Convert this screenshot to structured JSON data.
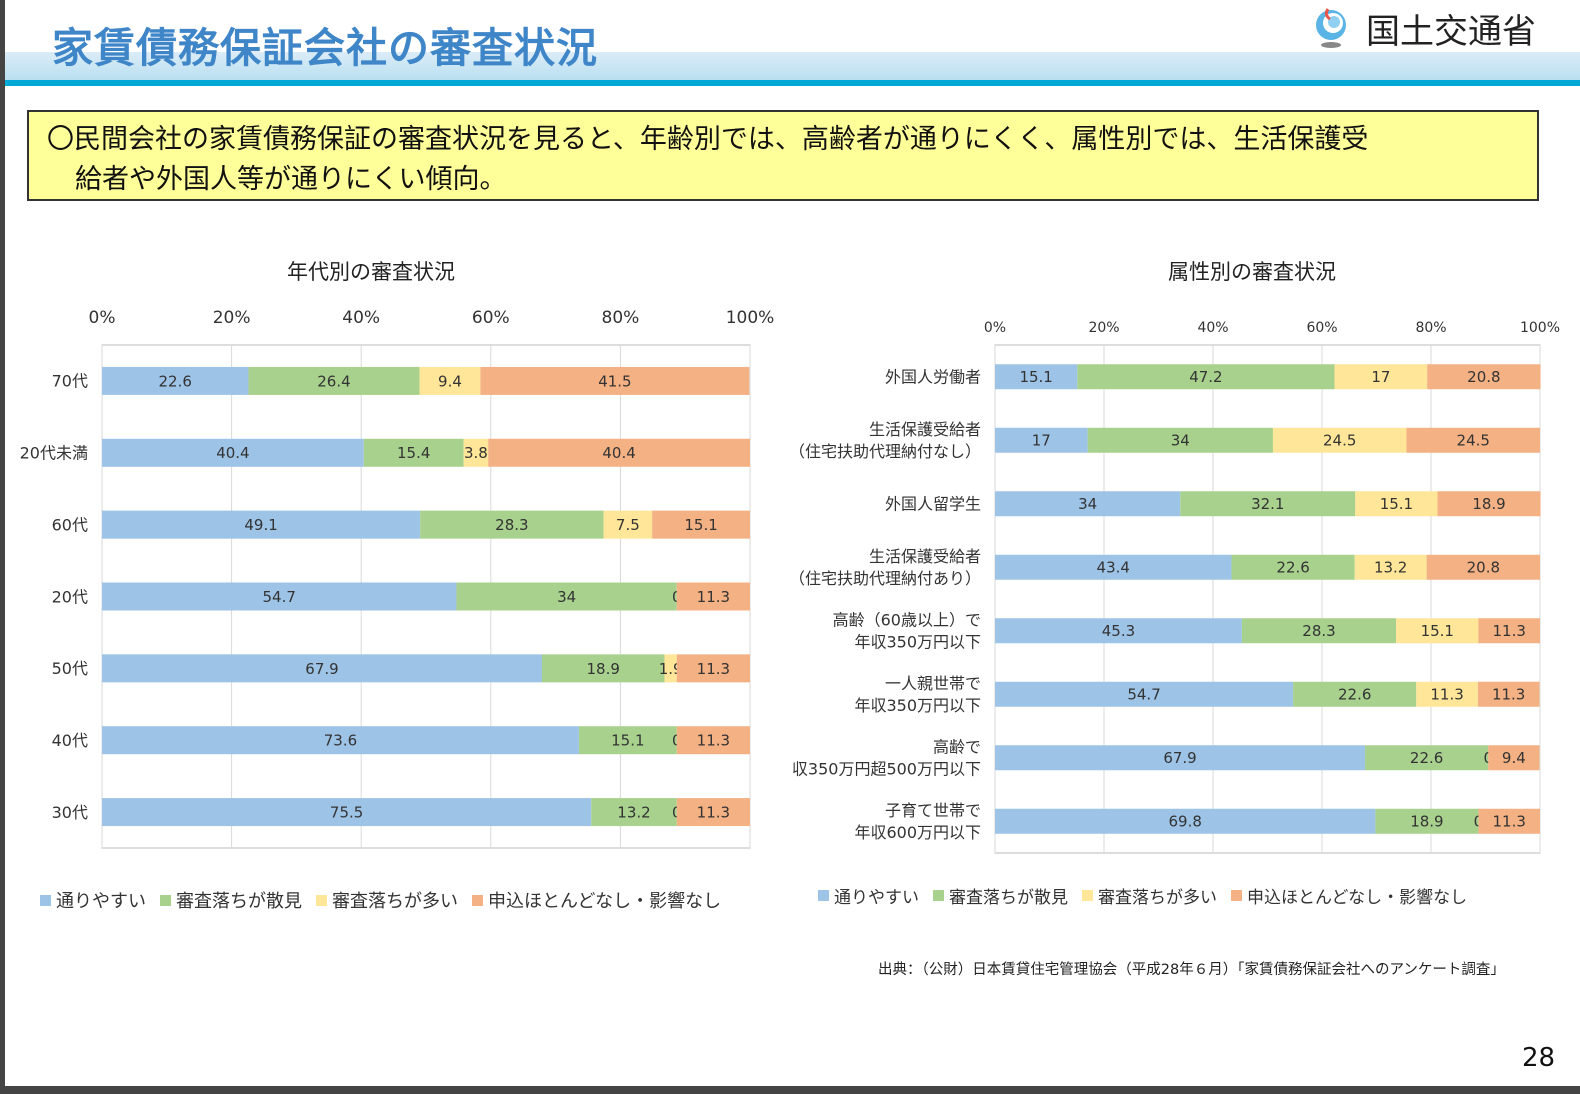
{
  "header": {
    "title": "家賃債務保証会社の審査状況",
    "logo_text": "国土交通省"
  },
  "summary": {
    "line1": "〇民間会社の家賃債務保証の審査状況を見ると、年齢別では、高齢者が通りにくく、属性別では、生活保護受",
    "line2": "給者や外国人等が通りにくい傾向。"
  },
  "colors": {
    "series": [
      "#9dc3e6",
      "#a9d18e",
      "#ffe699",
      "#f4b183"
    ],
    "title": "#3f86c8",
    "accent_line": "#00a8d6",
    "summary_bg": "#ffff99"
  },
  "chart_data": [
    {
      "type": "bar",
      "orientation": "horizontal",
      "stacked": "percent",
      "title": "年代別の審査状況",
      "xlim": [
        0,
        100
      ],
      "xticks": [
        "0%",
        "20%",
        "40%",
        "60%",
        "80%",
        "100%"
      ],
      "grid": true,
      "legend_position": "bottom",
      "categories": [
        [
          "70代"
        ],
        [
          "20代未満"
        ],
        [
          "60代"
        ],
        [
          "20代"
        ],
        [
          "50代"
        ],
        [
          "40代"
        ],
        [
          "30代"
        ]
      ],
      "series": [
        {
          "name": "通りやすい",
          "values": [
            22.6,
            40.4,
            49.1,
            54.7,
            67.9,
            73.6,
            75.5
          ]
        },
        {
          "name": "審査落ちが散見",
          "values": [
            26.4,
            15.4,
            28.3,
            34,
            18.9,
            15.1,
            13.2
          ]
        },
        {
          "name": "審査落ちが多い",
          "values": [
            9.4,
            3.8,
            7.5,
            0,
            1.9,
            0,
            0
          ]
        },
        {
          "name": "申込ほとんどなし・影響なし",
          "values": [
            41.5,
            40.4,
            15.1,
            11.3,
            11.3,
            11.3,
            11.3
          ]
        }
      ]
    },
    {
      "type": "bar",
      "orientation": "horizontal",
      "stacked": "percent",
      "title": "属性別の審査状況",
      "xlim": [
        0,
        100
      ],
      "xticks": [
        "0%",
        "20%",
        "40%",
        "60%",
        "80%",
        "100%"
      ],
      "grid": true,
      "legend_position": "bottom",
      "categories": [
        [
          "外国人労働者"
        ],
        [
          "生活保護受給者",
          "（住宅扶助代理納付なし）"
        ],
        [
          "外国人留学生"
        ],
        [
          "生活保護受給者",
          "（住宅扶助代理納付あり）"
        ],
        [
          "高齢（60歳以上）で",
          "年収350万円以下"
        ],
        [
          "一人親世帯で",
          "年収350万円以下"
        ],
        [
          "高齢で",
          "収350万円超500万円以下"
        ],
        [
          "子育て世帯で",
          "年収600万円以下"
        ]
      ],
      "series": [
        {
          "name": "通りやすい",
          "values": [
            15.1,
            17,
            34,
            43.4,
            45.3,
            54.7,
            67.9,
            69.8
          ]
        },
        {
          "name": "審査落ちが散見",
          "values": [
            47.2,
            34,
            32.1,
            22.6,
            28.3,
            22.6,
            22.6,
            18.9
          ]
        },
        {
          "name": "審査落ちが多い",
          "values": [
            17,
            24.5,
            15.1,
            13.2,
            15.1,
            11.3,
            0,
            0
          ]
        },
        {
          "name": "申込ほとんどなし・影響なし",
          "values": [
            20.8,
            24.5,
            18.9,
            20.8,
            11.3,
            11.3,
            9.4,
            11.3
          ]
        }
      ]
    }
  ],
  "footer": {
    "source": "出典：（公財）日本賃貸住宅管理協会（平成28年６月）「家賃債務保証会社へのアンケート調査」",
    "page_number": "28"
  }
}
